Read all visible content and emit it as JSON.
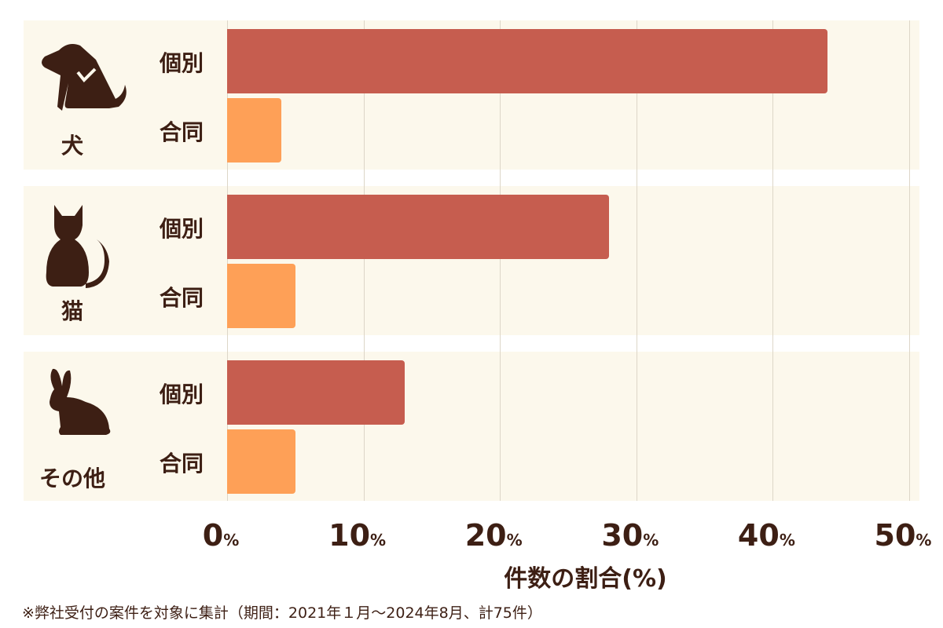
{
  "chart_data": {
    "type": "bar",
    "orientation": "horizontal",
    "groups": [
      {
        "label": "犬",
        "icon": "dog-icon"
      },
      {
        "label": "猫",
        "icon": "cat-icon"
      },
      {
        "label": "その他",
        "icon": "rabbit-icon"
      }
    ],
    "series": [
      {
        "name": "個別",
        "values": [
          44,
          28,
          13
        ],
        "color": "#c65d4f"
      },
      {
        "name": "合同",
        "values": [
          4,
          5,
          5
        ],
        "color": "#fea057"
      }
    ],
    "xlim": [
      0,
      50
    ],
    "xticks": [
      "0",
      "10",
      "20",
      "30",
      "40",
      "50"
    ],
    "tick_unit": "%",
    "xlabel": "件数の割合(%)",
    "grid": true
  },
  "footnote": "※弊社受付の案件を対象に集計（期間：2021年１月～2024年8月、計75件）",
  "colors": {
    "text": "#3d1f14",
    "panel": "#fcf8ec"
  }
}
